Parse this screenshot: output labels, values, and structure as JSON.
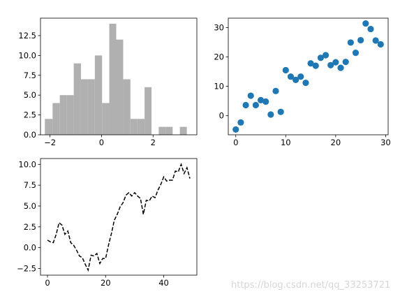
{
  "figure": {
    "watermark": "https://blog.csdn.net/qq_33253721"
  },
  "chart_data": [
    {
      "type": "bar",
      "subtype": "histogram",
      "panel": "top-left",
      "color": "#b0b0b0",
      "bins": [
        {
          "x0": -2.2,
          "x1": -1.9,
          "count": 2
        },
        {
          "x0": -1.9,
          "x1": -1.62,
          "count": 4
        },
        {
          "x0": -1.62,
          "x1": -1.35,
          "count": 5
        },
        {
          "x0": -1.35,
          "x1": -1.08,
          "count": 5
        },
        {
          "x0": -1.08,
          "x1": -0.8,
          "count": 9
        },
        {
          "x0": -0.8,
          "x1": -0.53,
          "count": 7
        },
        {
          "x0": -0.53,
          "x1": -0.26,
          "count": 7
        },
        {
          "x0": -0.26,
          "x1": 0.02,
          "count": 10
        },
        {
          "x0": 0.02,
          "x1": 0.3,
          "count": 4
        },
        {
          "x0": 0.3,
          "x1": 0.57,
          "count": 14
        },
        {
          "x0": 0.57,
          "x1": 0.84,
          "count": 12
        },
        {
          "x0": 0.84,
          "x1": 1.12,
          "count": 7
        },
        {
          "x0": 1.12,
          "x1": 1.39,
          "count": 2
        },
        {
          "x0": 1.39,
          "x1": 1.67,
          "count": 2
        },
        {
          "x0": 1.67,
          "x1": 1.94,
          "count": 6
        },
        {
          "x0": 2.22,
          "x1": 2.49,
          "count": 1
        },
        {
          "x0": 2.49,
          "x1": 2.76,
          "count": 1
        },
        {
          "x0": 3.04,
          "x1": 3.31,
          "count": 1
        }
      ],
      "xlim": [
        -2.37,
        3.7
      ],
      "ylim": [
        0,
        14.7
      ],
      "xticks": [
        -2,
        0,
        2
      ],
      "yticks": [
        "0.0",
        "2.5",
        "5.0",
        "7.5",
        "10.0",
        "12.5"
      ],
      "ytick_values": [
        0,
        2.5,
        5,
        7.5,
        10,
        12.5
      ]
    },
    {
      "type": "scatter",
      "panel": "top-right",
      "color": "#1f77b4",
      "x": [
        0,
        1,
        2,
        3,
        4,
        5,
        6,
        7,
        8,
        9,
        10,
        11,
        12,
        13,
        14,
        15,
        16,
        17,
        18,
        19,
        20,
        21,
        22,
        23,
        24,
        25,
        26,
        27,
        28,
        29
      ],
      "y": [
        -4.7,
        -2.3,
        3.6,
        6.8,
        3.6,
        5.3,
        4.8,
        0.4,
        8.4,
        1.3,
        15.5,
        13.3,
        12.2,
        13.3,
        11.2,
        17.8,
        17.0,
        19.7,
        20.6,
        17.2,
        18.2,
        16.3,
        18.3,
        24.9,
        21.4,
        25.7,
        31.4,
        29.5,
        25.6,
        24.3
      ],
      "xlim": [
        -1.5,
        30.5
      ],
      "ylim": [
        -6.5,
        33.2
      ],
      "xticks": [
        0,
        10,
        20,
        30
      ],
      "yticks": [
        0,
        10,
        20,
        30
      ]
    },
    {
      "type": "line",
      "panel": "bottom-left",
      "color": "#000000",
      "linestyle": "dashed",
      "x": [
        0,
        1,
        2,
        3,
        4,
        5,
        6,
        7,
        8,
        9,
        10,
        11,
        12,
        13,
        14,
        15,
        16,
        17,
        18,
        19,
        20,
        21,
        22,
        23,
        24,
        25,
        26,
        27,
        28,
        29,
        30,
        31,
        32,
        33,
        34,
        35,
        36,
        37,
        38,
        39,
        40,
        41,
        42,
        43,
        44,
        45,
        46,
        47,
        48,
        49
      ],
      "y": [
        0.9,
        0.7,
        0.6,
        1.6,
        3.0,
        2.7,
        1.6,
        2.0,
        0.6,
        0.3,
        -0.3,
        -1.0,
        -1.2,
        -2.0,
        -2.7,
        -0.9,
        -1.0,
        -0.7,
        -1.9,
        -1.3,
        -1.3,
        0.3,
        1.7,
        3.3,
        4.0,
        4.9,
        5.4,
        6.3,
        6.6,
        6.2,
        6.6,
        6.2,
        5.9,
        4.0,
        5.7,
        5.6,
        6.2,
        6.0,
        6.9,
        7.6,
        8.5,
        8.0,
        8.1,
        8.1,
        9.2,
        9.1,
        10.0,
        8.9,
        9.6,
        8.3
      ],
      "xlim": [
        -2.4,
        51.4
      ],
      "ylim": [
        -3.3,
        10.7
      ],
      "xticks": [
        0,
        20,
        40
      ],
      "yticks": [
        "-2.5",
        "0.0",
        "2.5",
        "5.0",
        "7.5",
        "10.0"
      ],
      "ytick_values": [
        -2.5,
        0,
        2.5,
        5,
        7.5,
        10
      ]
    }
  ]
}
